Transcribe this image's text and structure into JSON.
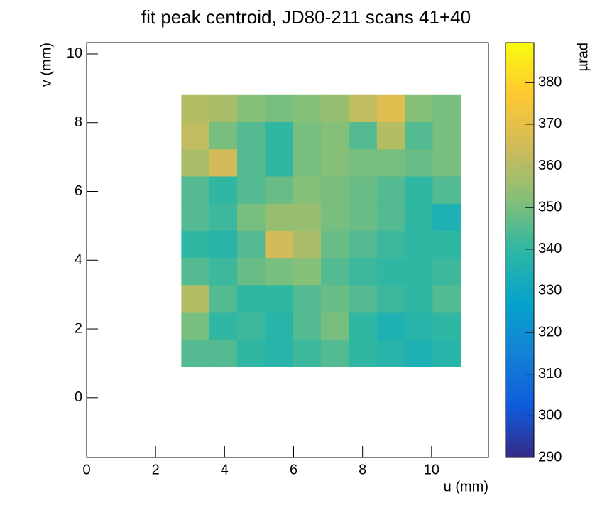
{
  "chart_data": {
    "type": "heatmap",
    "title": "fit peak centroid, JD80-211 scans 41+40",
    "x_label": "u (mm)",
    "y_label": "v (mm)",
    "z_label": "µrad",
    "xlim": [
      0,
      11.65
    ],
    "ylim": [
      -1.74,
      10.33
    ],
    "zlim": [
      290,
      389.6
    ],
    "xticks": [
      0,
      2,
      4,
      6,
      8,
      10
    ],
    "yticks": [
      0,
      2,
      4,
      6,
      8,
      10
    ],
    "zticks": [
      290,
      300,
      310,
      320,
      330,
      340,
      350,
      360,
      370,
      380
    ],
    "colormap": [
      "#352a87",
      "#0f5cdd",
      "#1481d6",
      "#06a4ca",
      "#2eb7a4",
      "#87bf77",
      "#d1bb59",
      "#fec832",
      "#f9fb0e"
    ],
    "x_edges": [
      2.75,
      3.56,
      4.37,
      5.18,
      5.99,
      6.8,
      7.61,
      8.42,
      9.23,
      10.04,
      10.85
    ],
    "y_edges": [
      8.8,
      8.01,
      7.22,
      6.43,
      5.64,
      4.85,
      4.06,
      3.27,
      2.48,
      1.69,
      0.9
    ],
    "z": [
      [
        360,
        358,
        352,
        350,
        352,
        355,
        362,
        368,
        352,
        350
      ],
      [
        362,
        350,
        345,
        340,
        350,
        352,
        345,
        360,
        345,
        350
      ],
      [
        358,
        365,
        345,
        340,
        350,
        352,
        350,
        350,
        348,
        350
      ],
      [
        345,
        340,
        345,
        348,
        352,
        350,
        348,
        345,
        340,
        345
      ],
      [
        345,
        342,
        350,
        355,
        355,
        350,
        348,
        345,
        340,
        335
      ],
      [
        340,
        338,
        345,
        365,
        358,
        348,
        345,
        342,
        340,
        340
      ],
      [
        345,
        342,
        348,
        350,
        352,
        345,
        342,
        340,
        340,
        342
      ],
      [
        360,
        345,
        340,
        340,
        345,
        348,
        345,
        342,
        340,
        345
      ],
      [
        350,
        340,
        342,
        338,
        345,
        350,
        340,
        335,
        338,
        340
      ],
      [
        345,
        345,
        340,
        338,
        342,
        345,
        340,
        338,
        335,
        338
      ]
    ]
  }
}
